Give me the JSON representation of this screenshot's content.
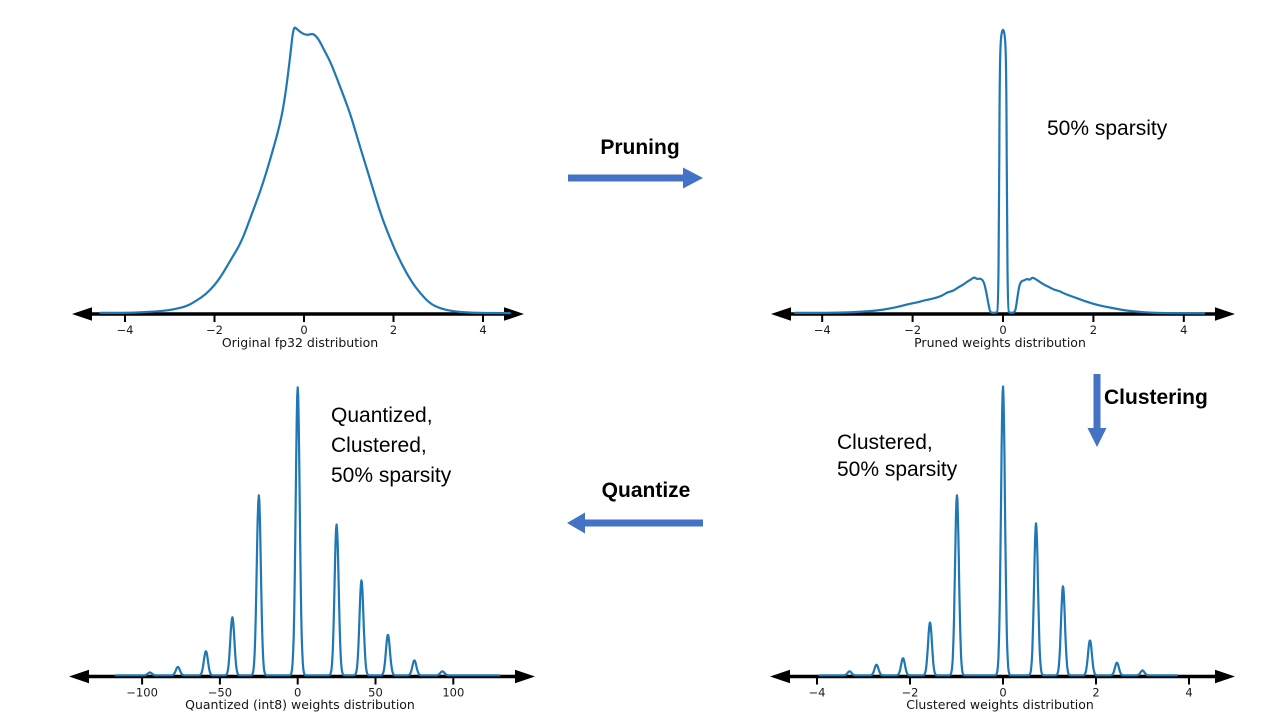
{
  "colors": {
    "curve": "#1f77b4",
    "flow_arrow": "#4472C4",
    "axis": "#000000",
    "tick_label": "#1a1a1a",
    "text": "#000000",
    "background": "#ffffff"
  },
  "flow": {
    "pruning_label": "Pruning",
    "clustering_label": "Clustering",
    "quantize_label": "Quantize"
  },
  "annotations": {
    "pruned_sparsity": "50% sparsity",
    "clustered": [
      "Clustered,",
      "50% sparsity"
    ],
    "quantized": [
      "Quantized,",
      "Clustered,",
      "50% sparsity"
    ]
  },
  "chart_data": [
    {
      "id": "original",
      "type": "line",
      "title": "Original fp32 distribution",
      "xlabel": "Original fp32 distribution",
      "ylabel": "",
      "grid": false,
      "xlim": [
        -4.55,
        4.6
      ],
      "x_ticks": [
        {
          "v": -4,
          "label": "−4"
        },
        {
          "v": -2,
          "label": "−2"
        },
        {
          "v": 0,
          "label": "0"
        },
        {
          "v": 2,
          "label": "2"
        },
        {
          "v": 4,
          "label": "4"
        }
      ],
      "points_format": "[x, relative_density 0..1]",
      "points": [
        [
          -4.55,
          0.004
        ],
        [
          -4.0,
          0.004
        ],
        [
          -3.6,
          0.006
        ],
        [
          -3.2,
          0.01
        ],
        [
          -2.9,
          0.016
        ],
        [
          -2.6,
          0.028
        ],
        [
          -2.4,
          0.047
        ],
        [
          -2.2,
          0.068
        ],
        [
          -2.0,
          0.1
        ],
        [
          -1.84,
          0.135
        ],
        [
          -1.62,
          0.193
        ],
        [
          -1.4,
          0.25
        ],
        [
          -1.18,
          0.343
        ],
        [
          -0.96,
          0.434
        ],
        [
          -0.73,
          0.551
        ],
        [
          -0.51,
          0.677
        ],
        [
          -0.4,
          0.78
        ],
        [
          -0.3,
          0.91
        ],
        [
          -0.26,
          0.97
        ],
        [
          -0.22,
          1.0
        ],
        [
          -0.17,
          0.995
        ],
        [
          -0.1,
          0.985
        ],
        [
          0.0,
          0.974
        ],
        [
          0.1,
          0.972
        ],
        [
          0.2,
          0.978
        ],
        [
          0.32,
          0.96
        ],
        [
          0.45,
          0.92
        ],
        [
          0.6,
          0.875
        ],
        [
          0.75,
          0.815
        ],
        [
          0.9,
          0.754
        ],
        [
          1.05,
          0.69
        ],
        [
          1.27,
          0.573
        ],
        [
          1.5,
          0.458
        ],
        [
          1.7,
          0.354
        ],
        [
          1.93,
          0.26
        ],
        [
          2.16,
          0.18
        ],
        [
          2.38,
          0.118
        ],
        [
          2.6,
          0.071
        ],
        [
          2.82,
          0.036
        ],
        [
          3.05,
          0.019
        ],
        [
          3.3,
          0.01
        ],
        [
          3.7,
          0.004
        ],
        [
          4.6,
          0.003
        ]
      ]
    },
    {
      "id": "pruned",
      "type": "line",
      "title": "Pruned weights distribution",
      "xlabel": "Pruned weights distribution",
      "ylabel": "",
      "grid": false,
      "xlim": [
        -4.6,
        4.45
      ],
      "x_ticks": [
        {
          "v": -4,
          "label": "−4"
        },
        {
          "v": -2,
          "label": "−2"
        },
        {
          "v": 0,
          "label": "0"
        },
        {
          "v": 2,
          "label": "2"
        },
        {
          "v": 4,
          "label": "4"
        }
      ],
      "points_format": "[x, relative_density 0..1]",
      "points": [
        [
          -4.6,
          0.004
        ],
        [
          -4.0,
          0.004
        ],
        [
          -3.5,
          0.005
        ],
        [
          -3.1,
          0.008
        ],
        [
          -2.8,
          0.012
        ],
        [
          -2.5,
          0.019
        ],
        [
          -2.25,
          0.028
        ],
        [
          -2.05,
          0.036
        ],
        [
          -1.9,
          0.04
        ],
        [
          -1.78,
          0.046
        ],
        [
          -1.65,
          0.05
        ],
        [
          -1.5,
          0.056
        ],
        [
          -1.35,
          0.063
        ],
        [
          -1.22,
          0.077
        ],
        [
          -1.1,
          0.08
        ],
        [
          -1.0,
          0.092
        ],
        [
          -0.9,
          0.1
        ],
        [
          -0.8,
          0.112
        ],
        [
          -0.71,
          0.12
        ],
        [
          -0.64,
          0.129
        ],
        [
          -0.57,
          0.121
        ],
        [
          -0.5,
          0.124
        ],
        [
          -0.43,
          0.115
        ],
        [
          -0.38,
          0.085
        ],
        [
          -0.33,
          0.04
        ],
        [
          -0.29,
          0.01
        ],
        [
          -0.26,
          0.004
        ],
        [
          -0.15,
          0.004
        ],
        [
          -0.11,
          0.01
        ],
        [
          -0.09,
          0.3
        ],
        [
          -0.075,
          0.8
        ],
        [
          -0.055,
          0.96
        ],
        [
          0.0,
          1.0
        ],
        [
          0.055,
          0.96
        ],
        [
          0.075,
          0.8
        ],
        [
          0.09,
          0.3
        ],
        [
          0.11,
          0.01
        ],
        [
          0.15,
          0.004
        ],
        [
          0.24,
          0.004
        ],
        [
          0.28,
          0.015
        ],
        [
          0.32,
          0.06
        ],
        [
          0.36,
          0.1
        ],
        [
          0.41,
          0.115
        ],
        [
          0.47,
          0.117
        ],
        [
          0.53,
          0.123
        ],
        [
          0.59,
          0.118
        ],
        [
          0.65,
          0.128
        ],
        [
          0.73,
          0.121
        ],
        [
          0.82,
          0.111
        ],
        [
          0.92,
          0.101
        ],
        [
          1.02,
          0.094
        ],
        [
          1.12,
          0.085
        ],
        [
          1.25,
          0.08
        ],
        [
          1.4,
          0.068
        ],
        [
          1.55,
          0.06
        ],
        [
          1.72,
          0.05
        ],
        [
          1.9,
          0.04
        ],
        [
          2.1,
          0.031
        ],
        [
          2.35,
          0.023
        ],
        [
          2.6,
          0.015
        ],
        [
          2.9,
          0.009
        ],
        [
          3.2,
          0.005
        ],
        [
          3.55,
          0.003
        ],
        [
          4.45,
          0.002
        ]
      ]
    },
    {
      "id": "quantized",
      "type": "line",
      "title": "Quantized (int8) weights distribution",
      "xlabel": "Quantized (int8) weights distribution",
      "ylabel": "",
      "grid": false,
      "xlim": [
        -117,
        130
      ],
      "x_ticks": [
        {
          "v": -100,
          "label": "−100"
        },
        {
          "v": -50,
          "label": "−50"
        },
        {
          "v": 0,
          "label": "0"
        },
        {
          "v": 50,
          "label": "50"
        },
        {
          "v": 100,
          "label": "100"
        }
      ],
      "spikes_format": "[center_x, relative_height 0..1]",
      "sigma": 1.3,
      "spikes": [
        [
          -95,
          0.01
        ],
        [
          -77,
          0.029
        ],
        [
          -59,
          0.084
        ],
        [
          -42,
          0.202
        ],
        [
          -25,
          0.625
        ],
        [
          0,
          1.0
        ],
        [
          25,
          0.524
        ],
        [
          41,
          0.33
        ],
        [
          58,
          0.141
        ],
        [
          75,
          0.052
        ],
        [
          93,
          0.014
        ]
      ]
    },
    {
      "id": "clustered",
      "type": "line",
      "title": "Clustered weights distribution",
      "xlabel": "Clustered weights distribution",
      "ylabel": "",
      "grid": false,
      "xlim": [
        -3.95,
        3.75
      ],
      "x_ticks": [
        {
          "v": -4,
          "label": "−4"
        },
        {
          "v": -2,
          "label": "−2"
        },
        {
          "v": 0,
          "label": "0"
        },
        {
          "v": 2,
          "label": "2"
        },
        {
          "v": 4,
          "label": "4"
        }
      ],
      "spikes_format": "[center_x, relative_height 0..1]",
      "sigma": 0.042,
      "spikes": [
        [
          -3.3,
          0.014
        ],
        [
          -2.72,
          0.037
        ],
        [
          -2.15,
          0.059
        ],
        [
          -1.57,
          0.183
        ],
        [
          -0.99,
          0.623
        ],
        [
          0,
          1.0
        ],
        [
          0.71,
          0.526
        ],
        [
          1.29,
          0.308
        ],
        [
          1.87,
          0.121
        ],
        [
          2.45,
          0.044
        ],
        [
          3.0,
          0.017
        ]
      ]
    }
  ]
}
